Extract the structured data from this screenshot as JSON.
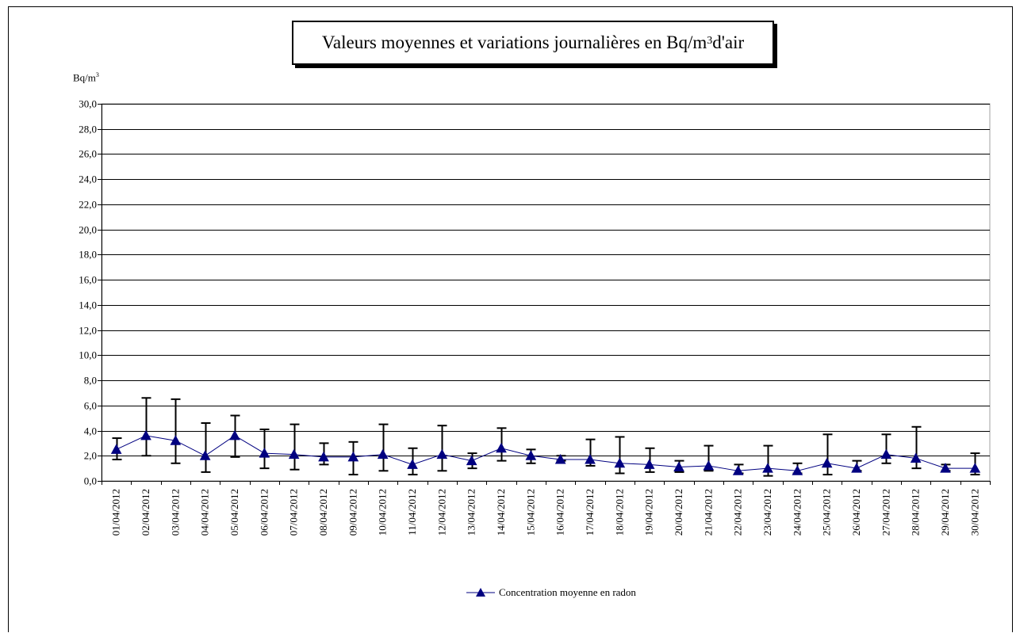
{
  "chart_data": {
    "type": "line",
    "title": "Valeurs moyennes et variations journalières en Bq/m",
    "title_sup": "3",
    "title_suffix": " d'air",
    "ylabel": "Bq/m",
    "ylabel_sup": "3",
    "ylim": [
      0,
      30
    ],
    "yticks": [
      "0,0",
      "2,0",
      "4,0",
      "6,0",
      "8,0",
      "10,0",
      "12,0",
      "14,0",
      "16,0",
      "18,0",
      "20,0",
      "22,0",
      "24,0",
      "26,0",
      "28,0",
      "30,0"
    ],
    "grid": true,
    "legend_position": "bottom",
    "categories": [
      "01/04/2012",
      "02/04/2012",
      "03/04/2012",
      "04/04/2012",
      "05/04/2012",
      "06/04/2012",
      "07/04/2012",
      "08/04/2012",
      "09/04/2012",
      "10/04/2012",
      "11/04/2012",
      "12/04/2012",
      "13/04/2012",
      "14/04/2012",
      "15/04/2012",
      "16/04/2012",
      "17/04/2012",
      "18/04/2012",
      "19/04/2012",
      "20/04/2012",
      "21/04/2012",
      "22/04/2012",
      "23/04/2012",
      "24/04/2012",
      "25/04/2012",
      "26/04/2012",
      "27/04/2012",
      "28/04/2012",
      "29/04/2012",
      "30/04/2012"
    ],
    "series": [
      {
        "name": "Concentration moyenne en radon",
        "color": "#000080",
        "marker": "triangle",
        "values": [
          2.5,
          3.6,
          3.2,
          2.0,
          3.6,
          2.2,
          2.1,
          1.9,
          1.9,
          2.1,
          1.3,
          2.1,
          1.6,
          2.6,
          2.0,
          1.7,
          1.7,
          1.4,
          1.3,
          1.1,
          1.2,
          0.8,
          1.0,
          0.8,
          1.4,
          1.0,
          2.1,
          1.8,
          1.0,
          1.0
        ],
        "error_low": [
          1.7,
          2.0,
          1.4,
          0.7,
          1.9,
          1.0,
          0.9,
          1.3,
          0.5,
          0.8,
          0.5,
          0.8,
          1.0,
          1.6,
          1.4,
          1.6,
          1.2,
          0.6,
          0.7,
          0.7,
          0.8,
          0.6,
          0.4,
          0.6,
          0.5,
          0.8,
          1.4,
          1.0,
          0.8,
          0.5
        ],
        "error_high": [
          3.4,
          6.6,
          6.5,
          4.6,
          5.2,
          4.1,
          4.5,
          3.0,
          3.1,
          4.5,
          2.6,
          4.4,
          2.2,
          4.2,
          2.5,
          2.0,
          3.3,
          3.5,
          2.6,
          1.6,
          2.8,
          1.3,
          2.8,
          1.4,
          3.7,
          1.6,
          3.7,
          4.3,
          1.3,
          2.2
        ]
      }
    ]
  }
}
